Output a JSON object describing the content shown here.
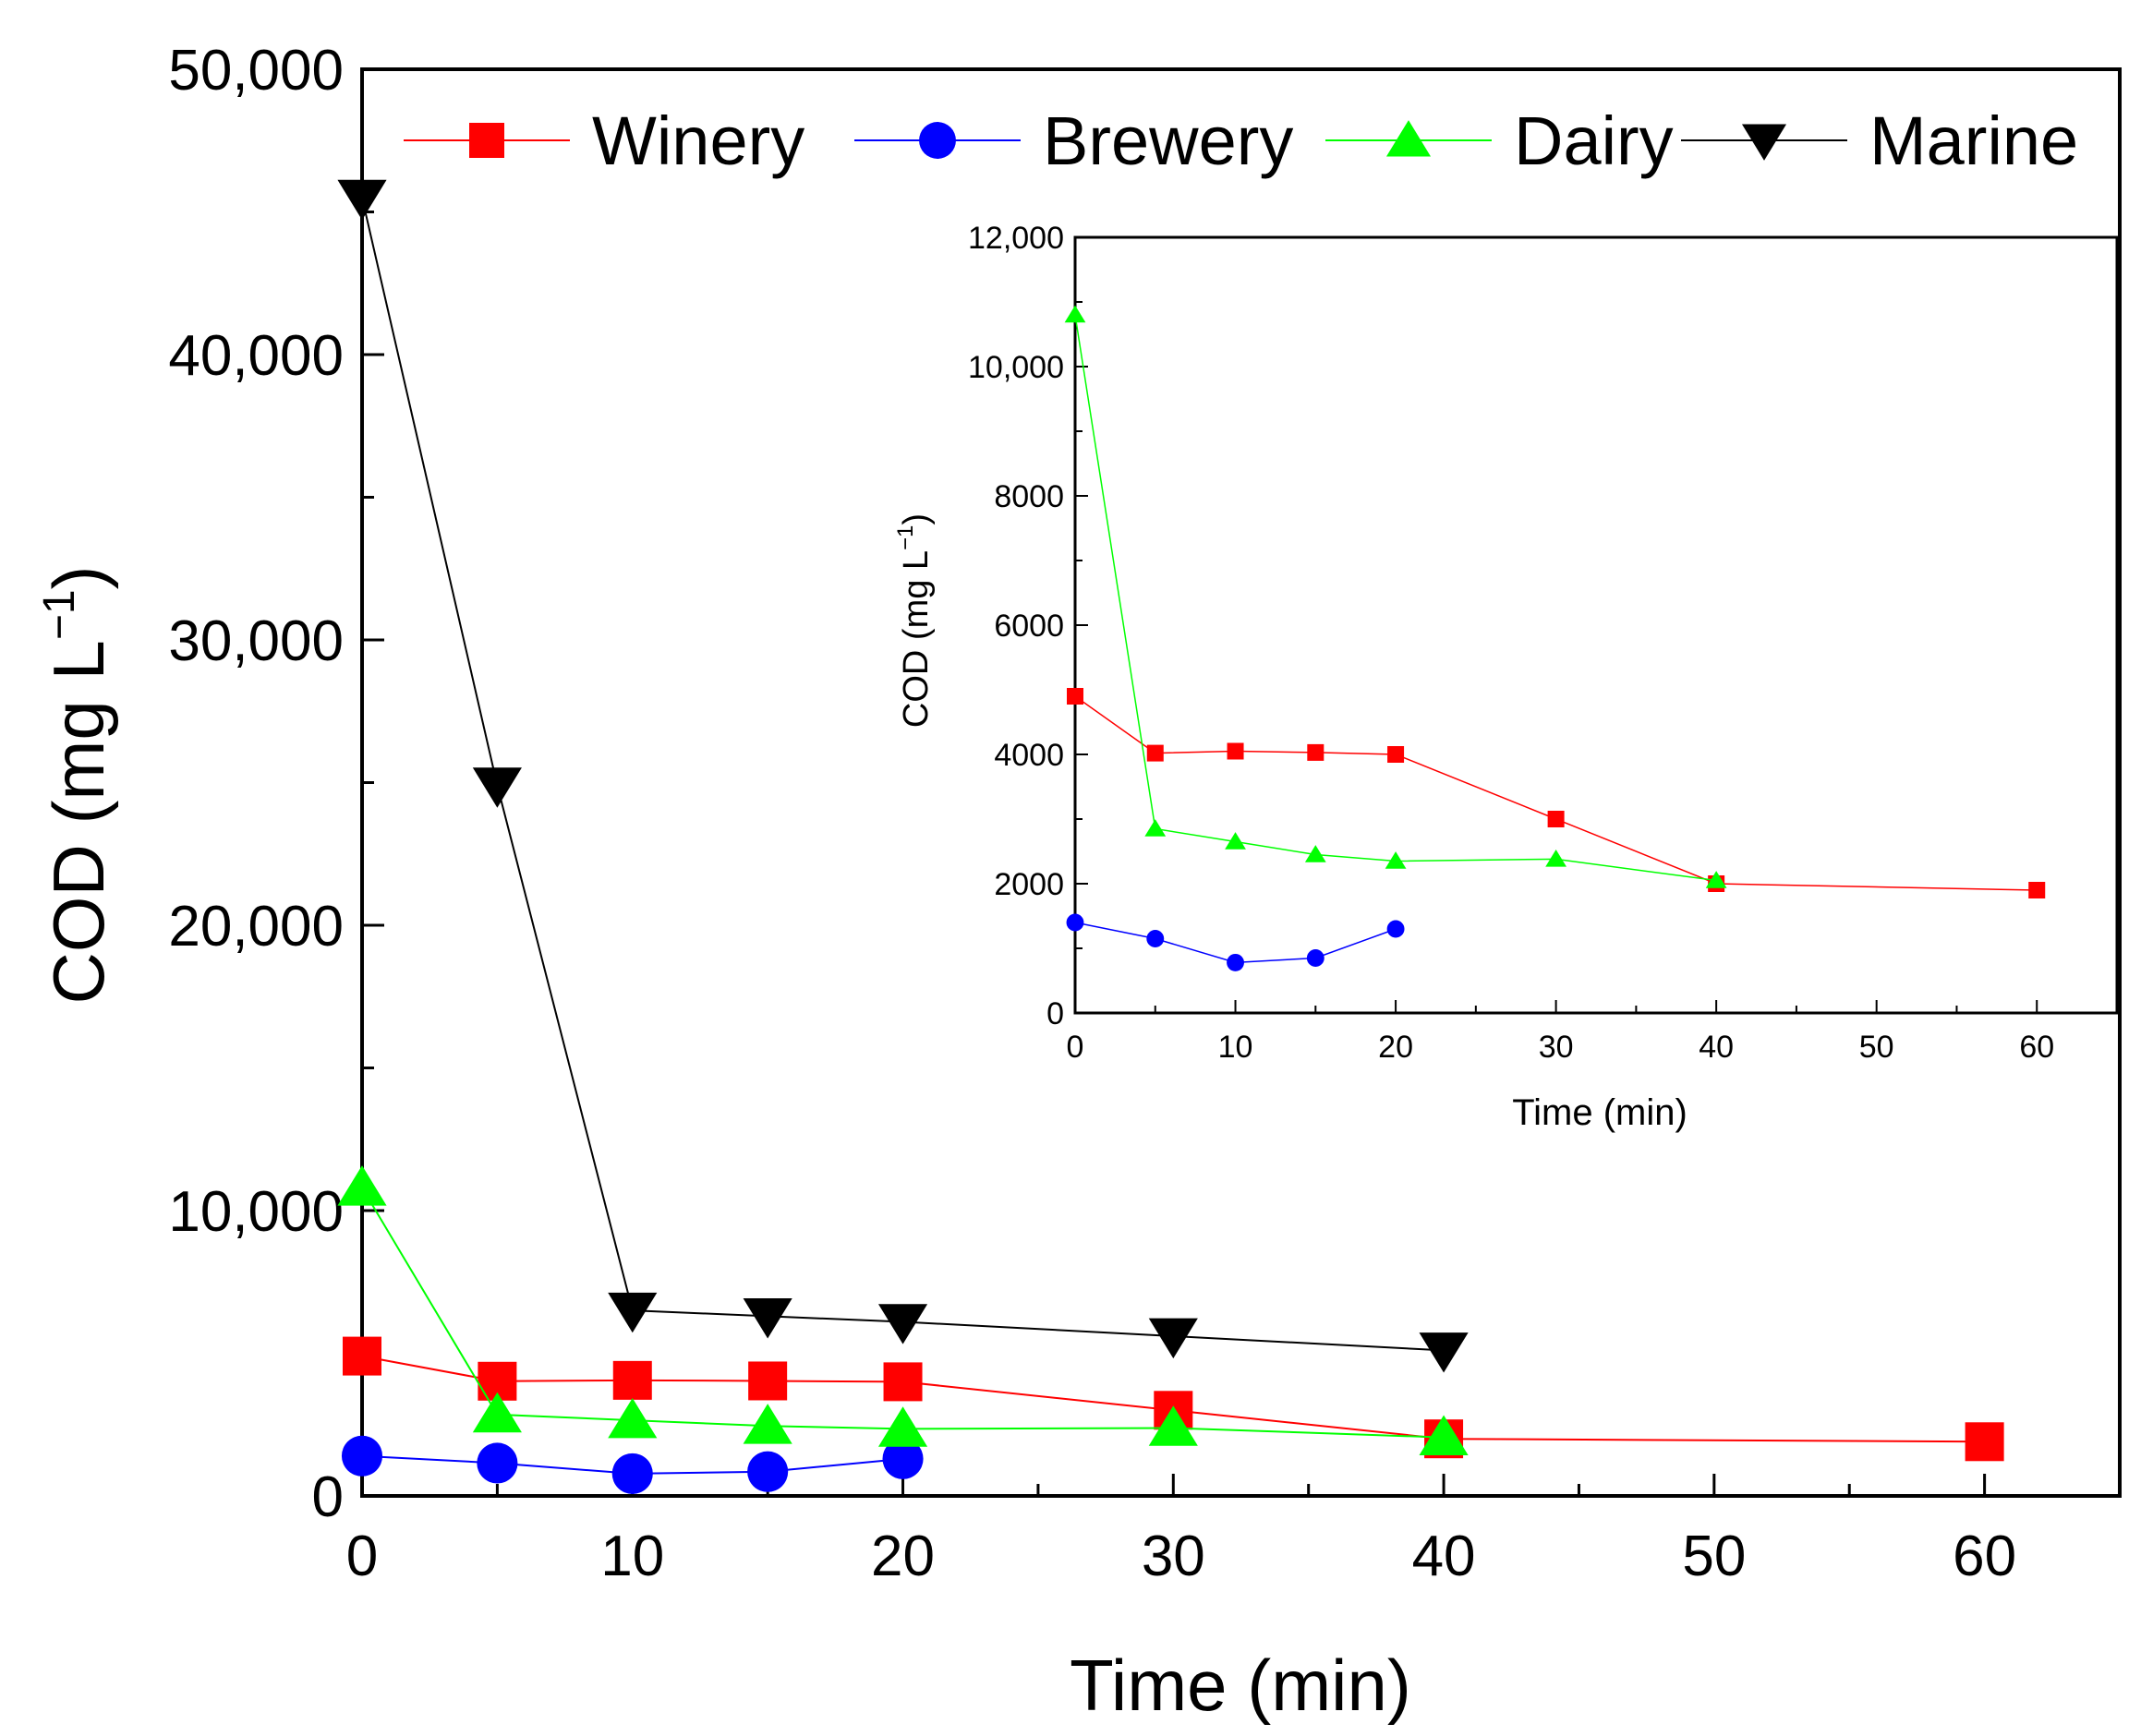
{
  "chart_data": [
    {
      "type": "line",
      "role": "main",
      "xlabel": "Time (min)",
      "ylabel_main": "COD (mg L",
      "ylabel_sup": "−1",
      "ylabel_close": ")",
      "xlim": [
        0,
        65
      ],
      "ylim": [
        0,
        50000
      ],
      "xticks": [
        0,
        10,
        20,
        30,
        40,
        50,
        60
      ],
      "xtick_labels": [
        "0",
        "10",
        "20",
        "30",
        "40",
        "50",
        "60"
      ],
      "yticks": [
        0,
        10000,
        20000,
        30000,
        40000,
        50000
      ],
      "ytick_labels": [
        "0",
        "10,000",
        "20,000",
        "30,000",
        "40,000",
        "50,000"
      ],
      "legend_position": "top",
      "series": [
        {
          "name": "Winery",
          "color": "#ff0000",
          "marker": "square",
          "x": [
            0,
            5,
            10,
            15,
            20,
            30,
            40,
            60
          ],
          "values": [
            4900,
            4020,
            4050,
            4030,
            4000,
            3000,
            2000,
            1900
          ]
        },
        {
          "name": "Brewery",
          "color": "#0000ff",
          "marker": "circle",
          "x": [
            0,
            5,
            10,
            15,
            20
          ],
          "values": [
            1400,
            1150,
            780,
            850,
            1300
          ]
        },
        {
          "name": "Dairy",
          "color": "#00ff00",
          "marker": "triangle-up",
          "x": [
            0,
            5,
            10,
            15,
            20,
            30,
            40
          ],
          "values": [
            10800,
            2850,
            2650,
            2450,
            2350,
            2380,
            2050
          ]
        },
        {
          "name": "Marine",
          "color": "#000000",
          "marker": "triangle-down",
          "x": [
            0,
            5,
            10,
            15,
            20,
            30,
            40
          ],
          "values": [
            45500,
            24900,
            6500,
            6300,
            6100,
            5600,
            5100
          ]
        }
      ]
    },
    {
      "type": "line",
      "role": "inset",
      "xlabel": "Time (min)",
      "ylabel_main": "COD (mg L",
      "ylabel_sup": "−1",
      "ylabel_close": ")",
      "xlim": [
        0,
        65
      ],
      "ylim": [
        0,
        12000
      ],
      "xticks": [
        0,
        10,
        20,
        30,
        40,
        50,
        60
      ],
      "xtick_labels": [
        "0",
        "10",
        "20",
        "30",
        "40",
        "50",
        "60"
      ],
      "yticks": [
        0,
        2000,
        4000,
        6000,
        8000,
        10000,
        12000
      ],
      "ytick_labels": [
        "0",
        "2000",
        "4000",
        "6000",
        "8000",
        "10,000",
        "12,000"
      ],
      "series": [
        {
          "name": "Winery",
          "color": "#ff0000",
          "marker": "square",
          "x": [
            0,
            5,
            10,
            15,
            20,
            30,
            40,
            60
          ],
          "values": [
            4900,
            4020,
            4050,
            4030,
            4000,
            3000,
            2000,
            1900
          ]
        },
        {
          "name": "Brewery",
          "color": "#0000ff",
          "marker": "circle",
          "x": [
            0,
            5,
            10,
            15,
            20
          ],
          "values": [
            1400,
            1150,
            780,
            850,
            1300
          ]
        },
        {
          "name": "Dairy",
          "color": "#00ff00",
          "marker": "triangle-up",
          "x": [
            0,
            5,
            10,
            15,
            20,
            30,
            40
          ],
          "values": [
            10800,
            2850,
            2650,
            2450,
            2350,
            2380,
            2050
          ]
        }
      ]
    }
  ]
}
